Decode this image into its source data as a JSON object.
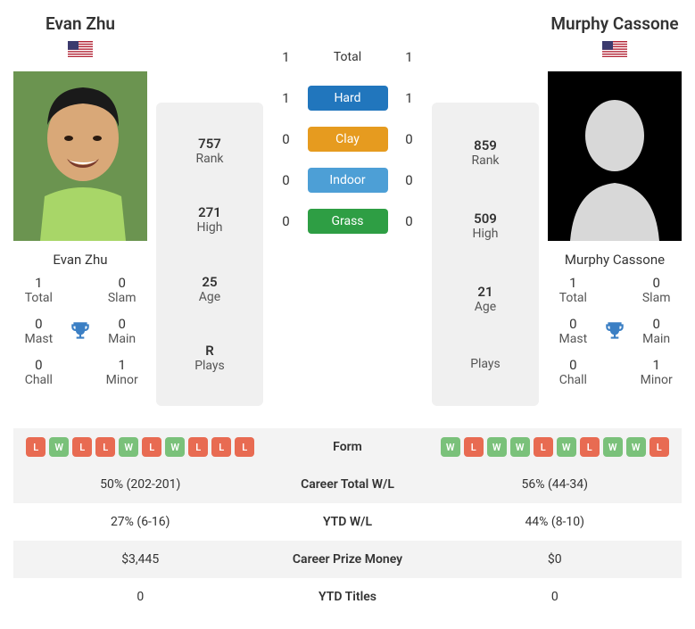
{
  "player1": {
    "name": "Evan Zhu",
    "country": "US",
    "rank": "757",
    "high": "271",
    "age": "25",
    "plays": "R",
    "titles": {
      "total": "1",
      "slam": "0",
      "mast": "0",
      "main": "0",
      "chall": "0",
      "minor": "1"
    }
  },
  "player2": {
    "name": "Murphy Cassone",
    "country": "US",
    "rank": "859",
    "high": "509",
    "age": "21",
    "plays": "",
    "titles": {
      "total": "1",
      "slam": "0",
      "mast": "0",
      "main": "0",
      "chall": "0",
      "minor": "1"
    }
  },
  "labels": {
    "rank": "Rank",
    "high": "High",
    "age": "Age",
    "plays": "Plays",
    "total": "Total",
    "slam": "Slam",
    "mast": "Mast",
    "main": "Main",
    "chall": "Chall",
    "minor": "Minor"
  },
  "h2h": {
    "total": {
      "label": "Total",
      "p1": "1",
      "p2": "1"
    },
    "hard": {
      "label": "Hard",
      "p1": "1",
      "p2": "1",
      "color": "#2176bd"
    },
    "clay": {
      "label": "Clay",
      "p1": "0",
      "p2": "0",
      "color": "#e69b1f"
    },
    "indoor": {
      "label": "Indoor",
      "p1": "0",
      "p2": "0",
      "color": "#4d9fd6"
    },
    "grass": {
      "label": "Grass",
      "p1": "0",
      "p2": "0",
      "color": "#2e9e44"
    }
  },
  "form": {
    "label": "Form",
    "p1": [
      "L",
      "W",
      "L",
      "L",
      "W",
      "L",
      "W",
      "L",
      "L",
      "L"
    ],
    "p2": [
      "W",
      "L",
      "W",
      "W",
      "L",
      "W",
      "L",
      "W",
      "W",
      "L"
    ],
    "win_color": "#7ac17a",
    "loss_color": "#e86b52"
  },
  "rows": [
    {
      "label": "Career Total W/L",
      "p1": "50% (202-201)",
      "p2": "56% (44-34)"
    },
    {
      "label": "YTD W/L",
      "p1": "27% (6-16)",
      "p2": "44% (8-10)"
    },
    {
      "label": "Career Prize Money",
      "p1": "$3,445",
      "p2": "$0"
    },
    {
      "label": "YTD Titles",
      "p1": "0",
      "p2": "0"
    }
  ],
  "colors": {
    "bg_alt": "#f3f3f3",
    "card_bg": "#f0f0f0",
    "trophy": "#3b7fc4"
  }
}
